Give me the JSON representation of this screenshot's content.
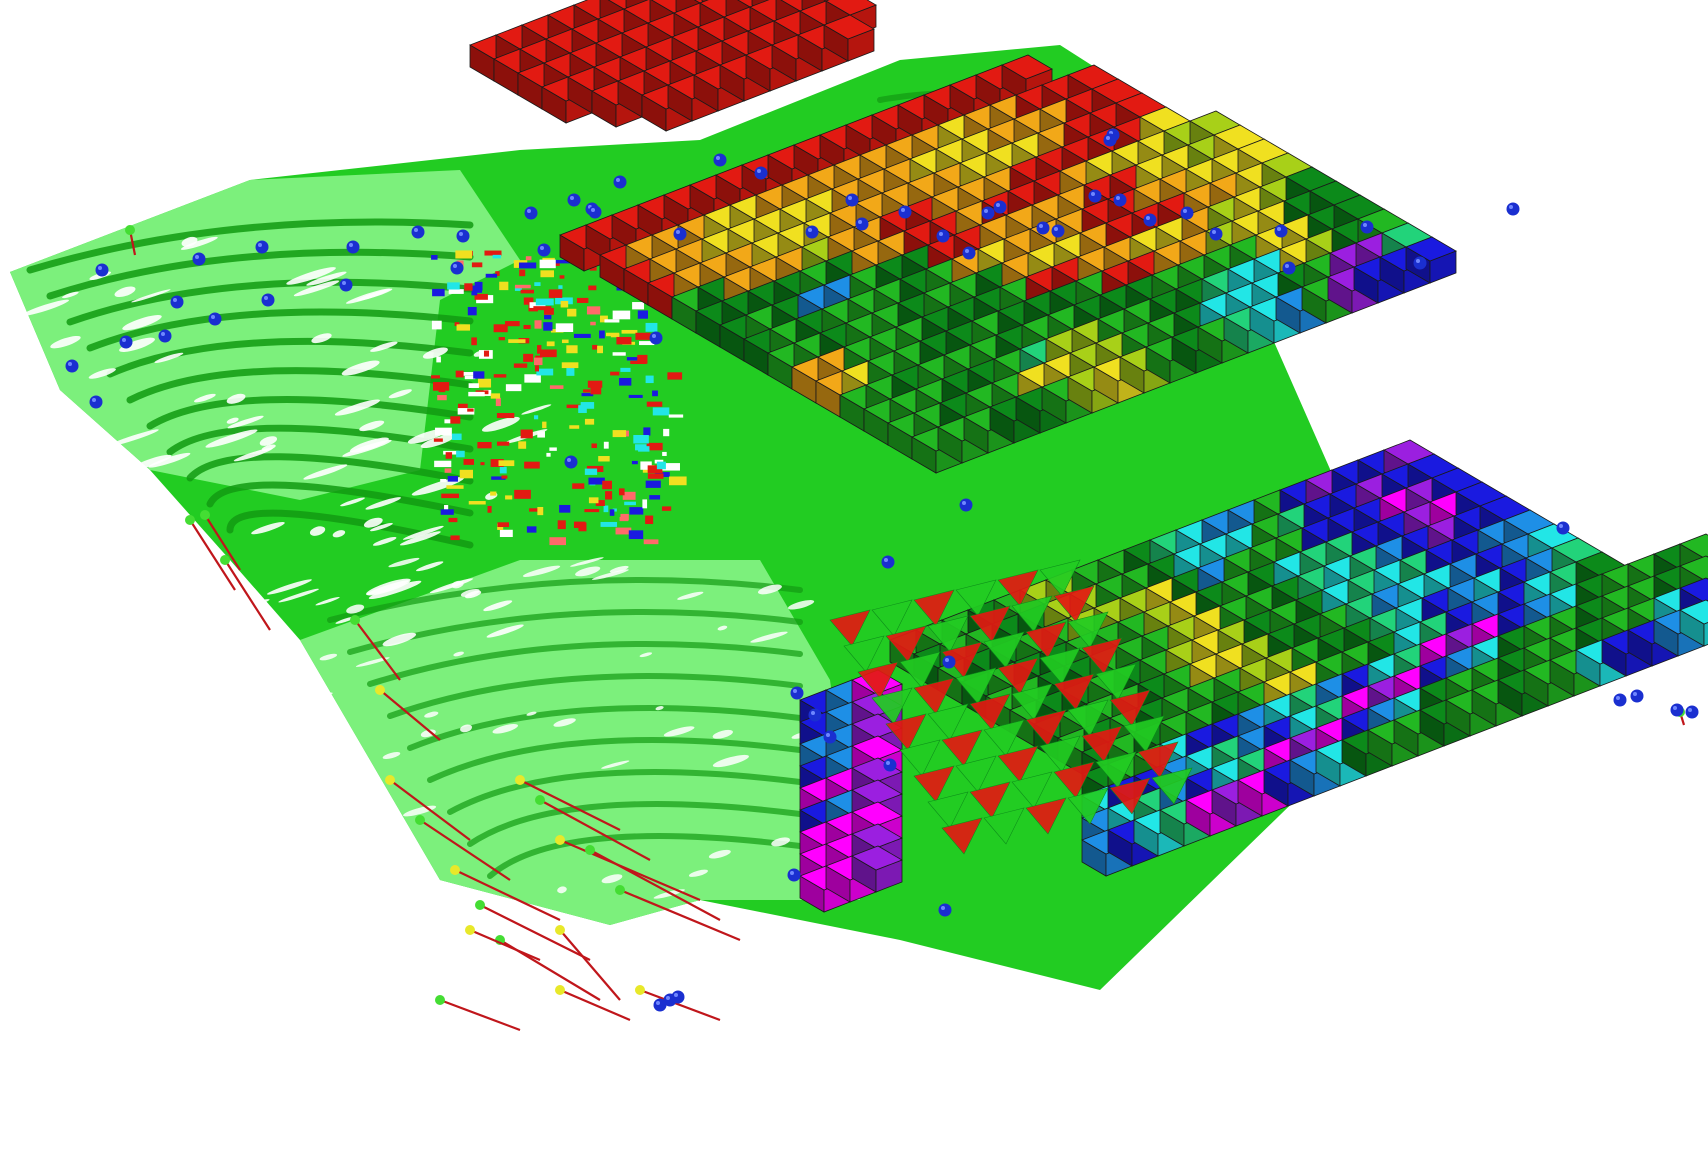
{
  "scene": {
    "background": "#ffffff",
    "block_outline": "#1a1a1a",
    "surface_color": "#22cc22",
    "surface_light": "#7cf07c",
    "surface_dark": "#129a12",
    "marker_color": "#1a2fd0",
    "drillhole_color": "#c0161b",
    "collar_colors": [
      "#44dd33",
      "#e8e82a"
    ],
    "grade_palette": [
      "#ff00ff",
      "#9b1fe0",
      "#1a1ae0",
      "#1e8fe6",
      "#22e6e6",
      "#22d37a",
      "#22b822",
      "#0c8a1a",
      "#a8d018",
      "#f0e020",
      "#f2a818",
      "#ee6a12",
      "#e21a12"
    ]
  }
}
